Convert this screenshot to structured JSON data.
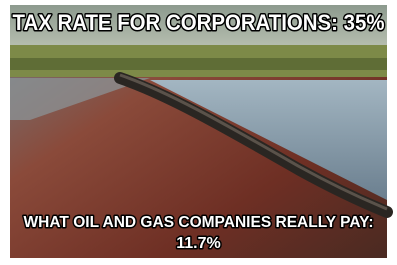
{
  "meme": {
    "top_text": "TAX RATE FOR CORPORATIONS: 35%",
    "bottom_text": [
      "WHAT OIL AND GAS COMPANIES REALLY PAY:",
      "11.7%"
    ]
  }
}
